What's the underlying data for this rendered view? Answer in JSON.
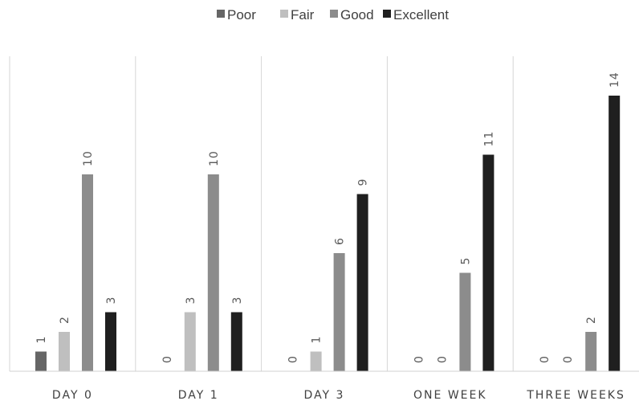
{
  "chart_data": {
    "type": "bar",
    "title": "",
    "xlabel": "",
    "ylabel": "",
    "categories": [
      "DAY 0",
      "DAY 1",
      "DAY 3",
      "ONE WEEK",
      "THREE WEEKS"
    ],
    "series": [
      {
        "name": "Poor",
        "color": "#666666",
        "values": [
          1,
          0,
          0,
          0,
          0
        ]
      },
      {
        "name": "Fair",
        "color": "#bfbfbf",
        "values": [
          2,
          3,
          1,
          0,
          0
        ]
      },
      {
        "name": "Good",
        "color": "#8c8c8c",
        "values": [
          10,
          10,
          6,
          5,
          2
        ]
      },
      {
        "name": "Excellent",
        "color": "#1f1f1f",
        "values": [
          3,
          3,
          9,
          11,
          14
        ]
      }
    ],
    "ylim": [
      0,
      14
    ],
    "legend_position": "top-center",
    "data_labels": true,
    "category_separators": true,
    "gridlines": false
  }
}
